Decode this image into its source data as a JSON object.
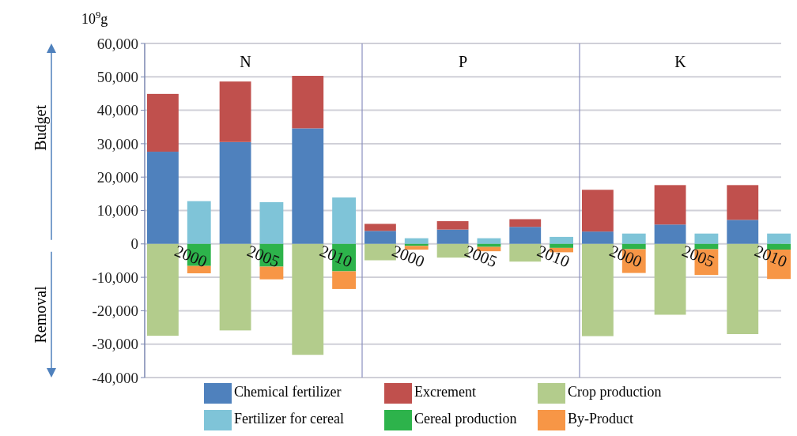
{
  "chart_data": {
    "type": "bar",
    "stacked": true,
    "ylabel": "10$^{9}$g",
    "categories": [
      "2000",
      null,
      "2005",
      null,
      "2010",
      null,
      "2000",
      null,
      "2005",
      null,
      "2010",
      null,
      "2000",
      null,
      "2005",
      null,
      "2010",
      null
    ],
    "series": [
      {
        "name": "Chemical fertilizer",
        "color": "#4f81bd",
        "values": [
          27600,
          null,
          30500,
          null,
          34600,
          null,
          3900,
          null,
          4300,
          null,
          5100,
          null,
          3700,
          null,
          5800,
          null,
          7200,
          null
        ]
      },
      {
        "name": "Excrement",
        "color": "#c0504d",
        "values": [
          17300,
          null,
          18100,
          null,
          15700,
          null,
          2100,
          null,
          2500,
          null,
          2300,
          null,
          12500,
          null,
          11800,
          null,
          10400,
          null
        ]
      },
      {
        "name": "Crop production",
        "color": "#b3cc8c",
        "values": [
          -27500,
          null,
          -25900,
          null,
          -33200,
          null,
          -4900,
          null,
          -4100,
          null,
          -5300,
          null,
          -27600,
          null,
          -21200,
          null,
          -27000,
          null
        ]
      },
      {
        "name": "Fertilizer for cereal",
        "color": "#7fc4d8",
        "values": [
          null,
          12800,
          null,
          12500,
          null,
          13900,
          null,
          1700,
          null,
          1700,
          null,
          2100,
          null,
          3100,
          null,
          3100,
          null,
          3100
        ]
      },
      {
        "name": "Cereal production",
        "color": "#2db34b",
        "values": [
          null,
          -6600,
          null,
          -6800,
          null,
          -8200,
          null,
          -600,
          null,
          -900,
          null,
          -1200,
          null,
          -1600,
          null,
          -1600,
          null,
          -1700
        ]
      },
      {
        "name": "By-Product",
        "color": "#f79646",
        "values": [
          null,
          -2200,
          null,
          -3800,
          null,
          -5300,
          null,
          -1100,
          null,
          -1300,
          null,
          -1300,
          null,
          -7100,
          null,
          -7700,
          null,
          -8800
        ]
      }
    ],
    "ylim": [
      -40000,
      60000
    ],
    "yticks": [
      {
        "value": -40000,
        "label": "-40,000"
      },
      {
        "value": -30000,
        "label": "-30,000"
      },
      {
        "value": -20000,
        "label": "-20,000"
      },
      {
        "value": -10000,
        "label": "-10,000"
      },
      {
        "value": 0,
        "label": "0"
      },
      {
        "value": 10000,
        "label": "10,000"
      },
      {
        "value": 20000,
        "label": "20,000"
      },
      {
        "value": 30000,
        "label": "30,000"
      },
      {
        "value": 40000,
        "label": "40,000"
      },
      {
        "value": 50000,
        "label": "50,000"
      },
      {
        "value": 60000,
        "label": "60,000"
      }
    ],
    "grid": "y",
    "legend": "bottom",
    "annotations": [
      "N",
      "P",
      "K",
      "Budget",
      "Removal"
    ]
  }
}
